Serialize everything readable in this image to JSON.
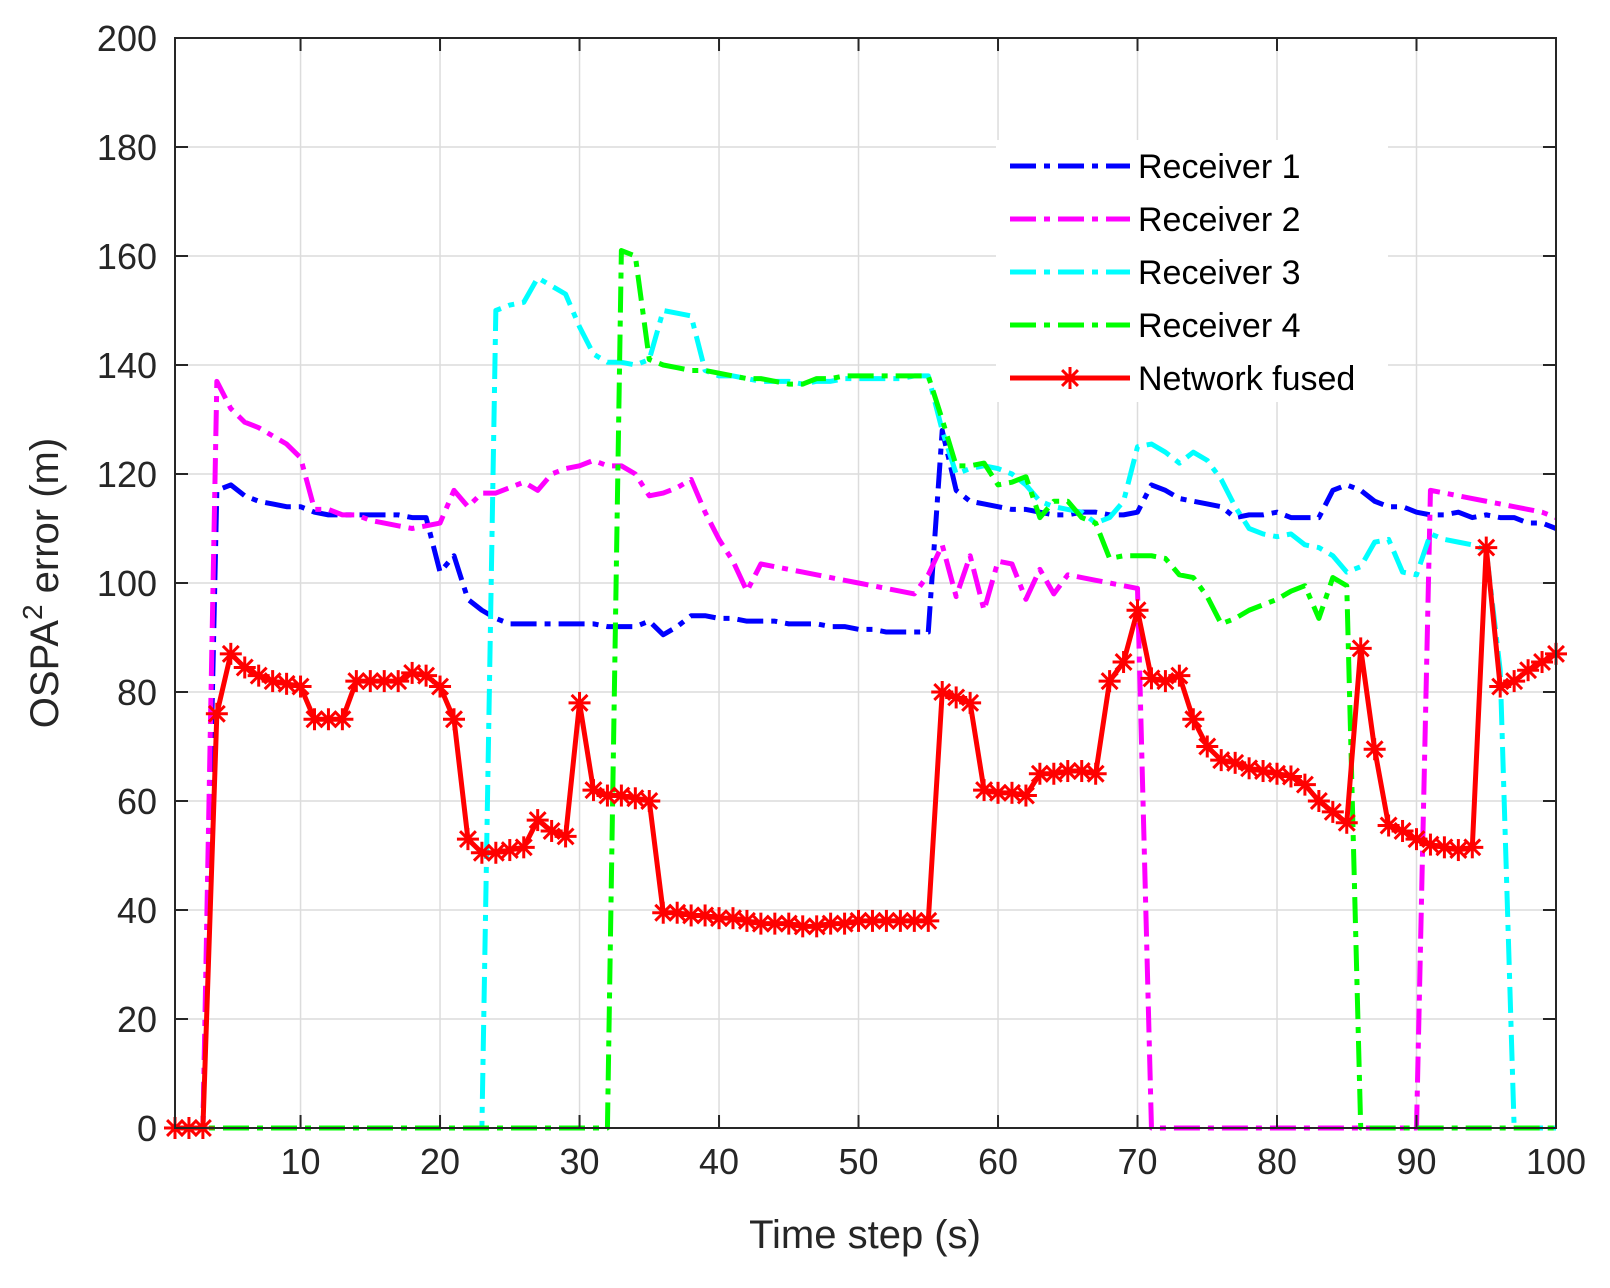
{
  "chart_data": {
    "type": "line",
    "title": "",
    "xlabel": "Time step (s)",
    "ylabel_main": "OSPA",
    "ylabel_superscript": "2",
    "ylabel_rest": " error (m)",
    "xlim": [
      1,
      100
    ],
    "ylim": [
      0,
      200
    ],
    "xticks": [
      10,
      20,
      30,
      40,
      50,
      60,
      70,
      80,
      90,
      100
    ],
    "yticks": [
      0,
      20,
      40,
      60,
      80,
      100,
      120,
      140,
      160,
      180,
      200
    ],
    "grid": true,
    "legend_position": "top-right",
    "series": [
      {
        "name": "Receiver 1",
        "color": "#0000ff",
        "style": "dashdot",
        "marker": "none",
        "x": [
          1,
          2,
          3,
          4,
          5,
          6,
          7,
          8,
          9,
          10,
          11,
          12,
          13,
          14,
          15,
          16,
          17,
          18,
          19,
          20,
          21,
          22,
          23,
          24,
          25,
          26,
          27,
          28,
          29,
          30,
          31,
          32,
          33,
          34,
          35,
          36,
          37,
          38,
          39,
          40,
          41,
          42,
          43,
          44,
          45,
          46,
          47,
          48,
          49,
          50,
          51,
          52,
          53,
          54,
          55,
          56,
          57,
          58,
          59,
          60,
          61,
          62,
          63,
          64,
          65,
          66,
          67,
          68,
          69,
          70,
          71,
          72,
          73,
          74,
          75,
          76,
          77,
          78,
          79,
          80,
          81,
          82,
          83,
          84,
          85,
          86,
          87,
          88,
          89,
          90,
          91,
          92,
          93,
          94,
          95,
          96,
          97,
          98,
          99,
          100
        ],
        "y": [
          0,
          0,
          0,
          117,
          118,
          116,
          115,
          114.5,
          114,
          114,
          113,
          112.5,
          112.5,
          112.5,
          112.5,
          112.5,
          112.5,
          112,
          112,
          102,
          105,
          97,
          95,
          93.5,
          92.5,
          92.5,
          92.5,
          92.5,
          92.5,
          92.5,
          92.5,
          92,
          92,
          92,
          93,
          90.5,
          92,
          94,
          94,
          93.5,
          93.5,
          93,
          93,
          93,
          92.5,
          92.5,
          92.5,
          92,
          92,
          91.5,
          91.5,
          91,
          91,
          91,
          91,
          128,
          117,
          115,
          114.5,
          114,
          113.5,
          113.5,
          113,
          112.5,
          112.5,
          113,
          113,
          112.5,
          112.5,
          113,
          118,
          117,
          115.5,
          115,
          114.5,
          114,
          112,
          112.5,
          112.5,
          113,
          112,
          112,
          112,
          117,
          118,
          117,
          115,
          114,
          114,
          113,
          112.5,
          112.5,
          113,
          112,
          112.5,
          112,
          112,
          111,
          111,
          110
        ]
      },
      {
        "name": "Receiver 2",
        "color": "#ff00ff",
        "style": "dashdot",
        "marker": "none",
        "x": [
          1,
          2,
          3,
          4,
          5,
          6,
          7,
          8,
          9,
          10,
          11,
          12,
          13,
          14,
          15,
          16,
          17,
          18,
          19,
          20,
          21,
          22,
          23,
          24,
          25,
          26,
          27,
          28,
          29,
          30,
          31,
          32,
          33,
          34,
          35,
          36,
          37,
          38,
          39,
          40,
          41,
          42,
          43,
          44,
          45,
          46,
          47,
          48,
          49,
          50,
          51,
          52,
          53,
          54,
          55,
          56,
          57,
          58,
          59,
          60,
          61,
          62,
          63,
          64,
          65,
          66,
          67,
          68,
          69,
          70,
          71,
          72,
          73,
          74,
          75,
          76,
          77,
          78,
          79,
          80,
          81,
          82,
          83,
          84,
          85,
          86,
          87,
          88,
          89,
          90,
          91,
          92,
          93,
          94,
          95,
          96,
          97,
          98,
          99,
          100
        ],
        "y": [
          0,
          0,
          0,
          137,
          132,
          129.5,
          128.5,
          127,
          125.5,
          123,
          113.5,
          113.5,
          112.5,
          112.5,
          111.5,
          111,
          110.5,
          110,
          110.5,
          111,
          117,
          114,
          116.5,
          116.5,
          117.5,
          118.5,
          117,
          120,
          121,
          121.5,
          122.5,
          121.5,
          121.5,
          120,
          116,
          116.5,
          117.5,
          119,
          113,
          108,
          104,
          98.5,
          103.5,
          103,
          102.5,
          102,
          101.5,
          101,
          100.5,
          100,
          99.5,
          99,
          98.5,
          98,
          101.5,
          107,
          97.5,
          105,
          95,
          104,
          103.5,
          97,
          102.5,
          98,
          101.5,
          101,
          100.5,
          100,
          99.5,
          99,
          0,
          0,
          0,
          0,
          0,
          0,
          0,
          0,
          0,
          0,
          0,
          0,
          0,
          0,
          0,
          0,
          0,
          0,
          0,
          0,
          117,
          116.5,
          116,
          115.5,
          115,
          114.5,
          114,
          113.5,
          113,
          112
        ]
      },
      {
        "name": "Receiver 3",
        "color": "#00ffff",
        "style": "dashdot",
        "marker": "none",
        "x": [
          1,
          2,
          3,
          4,
          5,
          6,
          7,
          8,
          9,
          10,
          11,
          12,
          13,
          14,
          15,
          16,
          17,
          18,
          19,
          20,
          21,
          22,
          23,
          24,
          25,
          26,
          27,
          28,
          29,
          30,
          31,
          32,
          33,
          34,
          35,
          36,
          37,
          38,
          39,
          40,
          41,
          42,
          43,
          44,
          45,
          46,
          47,
          48,
          49,
          50,
          51,
          52,
          53,
          54,
          55,
          56,
          57,
          58,
          59,
          60,
          61,
          62,
          63,
          64,
          65,
          66,
          67,
          68,
          69,
          70,
          71,
          72,
          73,
          74,
          75,
          76,
          77,
          78,
          79,
          80,
          81,
          82,
          83,
          84,
          85,
          86,
          87,
          88,
          89,
          90,
          91,
          92,
          93,
          94,
          95,
          96,
          97,
          98,
          99,
          100
        ],
        "y": [
          0,
          0,
          0,
          0,
          0,
          0,
          0,
          0,
          0,
          0,
          0,
          0,
          0,
          0,
          0,
          0,
          0,
          0,
          0,
          0,
          0,
          0,
          0,
          150,
          151,
          151.5,
          156,
          154.5,
          153,
          147,
          142,
          140.5,
          140.5,
          140,
          141,
          150,
          149.5,
          149,
          139,
          138,
          138,
          137.5,
          137,
          137,
          137,
          136.5,
          137,
          137,
          137.5,
          137.5,
          137.5,
          137.5,
          137.5,
          138,
          138,
          128,
          120,
          121,
          121.5,
          121,
          120,
          118,
          115,
          114,
          113.5,
          113,
          111,
          112,
          115,
          125,
          125.5,
          124,
          122,
          124,
          122.5,
          119,
          114,
          110,
          109,
          108.5,
          109,
          107,
          106.5,
          105,
          102,
          103,
          107.5,
          108,
          102,
          101.5,
          109,
          108,
          107.5,
          107,
          106,
          84,
          0,
          0,
          0,
          0
        ]
      },
      {
        "name": "Receiver 4",
        "color": "#00ff00",
        "style": "dashdot",
        "marker": "none",
        "x": [
          1,
          2,
          3,
          4,
          5,
          6,
          7,
          8,
          9,
          10,
          11,
          12,
          13,
          14,
          15,
          16,
          17,
          18,
          19,
          20,
          21,
          22,
          23,
          24,
          25,
          26,
          27,
          28,
          29,
          30,
          31,
          32,
          33,
          34,
          35,
          36,
          37,
          38,
          39,
          40,
          41,
          42,
          43,
          44,
          45,
          46,
          47,
          48,
          49,
          50,
          51,
          52,
          53,
          54,
          55,
          56,
          57,
          58,
          59,
          60,
          61,
          62,
          63,
          64,
          65,
          66,
          67,
          68,
          69,
          70,
          71,
          72,
          73,
          74,
          75,
          76,
          77,
          78,
          79,
          80,
          81,
          82,
          83,
          84,
          85,
          86,
          87,
          88,
          89,
          90,
          91,
          92,
          93,
          94,
          95,
          96,
          97,
          98,
          99,
          100
        ],
        "y": [
          0,
          0,
          0,
          0,
          0,
          0,
          0,
          0,
          0,
          0,
          0,
          0,
          0,
          0,
          0,
          0,
          0,
          0,
          0,
          0,
          0,
          0,
          0,
          0,
          0,
          0,
          0,
          0,
          0,
          0,
          0,
          0,
          161,
          160,
          141,
          140,
          139.5,
          139,
          139,
          138.5,
          138,
          137.5,
          137.5,
          137,
          136.5,
          136.5,
          137.5,
          137.5,
          138,
          138,
          138,
          138,
          138,
          138,
          138,
          130,
          121.5,
          121.5,
          122,
          118,
          118.5,
          119.5,
          112,
          115,
          115,
          112,
          111,
          104.5,
          105,
          105,
          105,
          104.5,
          101.5,
          101,
          97.5,
          92.5,
          93.5,
          95,
          96,
          97,
          98.5,
          99.5,
          93.5,
          101,
          99.5,
          0,
          0,
          0,
          0,
          0,
          0,
          0,
          0,
          0,
          0,
          0,
          0,
          0,
          0,
          0
        ]
      },
      {
        "name": "Network fused",
        "color": "#ff0000",
        "style": "solid",
        "marker": "asterisk",
        "x": [
          1,
          2,
          3,
          4,
          5,
          6,
          7,
          8,
          9,
          10,
          11,
          12,
          13,
          14,
          15,
          16,
          17,
          18,
          19,
          20,
          21,
          22,
          23,
          24,
          25,
          26,
          27,
          28,
          29,
          30,
          31,
          32,
          33,
          34,
          35,
          36,
          37,
          38,
          39,
          40,
          41,
          42,
          43,
          44,
          45,
          46,
          47,
          48,
          49,
          50,
          51,
          52,
          53,
          54,
          55,
          56,
          57,
          58,
          59,
          60,
          61,
          62,
          63,
          64,
          65,
          66,
          67,
          68,
          69,
          70,
          71,
          72,
          73,
          74,
          75,
          76,
          77,
          78,
          79,
          80,
          81,
          82,
          83,
          84,
          85,
          86,
          87,
          88,
          89,
          90,
          91,
          92,
          93,
          94,
          95,
          96,
          97,
          98,
          99,
          100
        ],
        "y": [
          0,
          0,
          0,
          76,
          87,
          84.5,
          83,
          82,
          81.5,
          81,
          75,
          75,
          75,
          82,
          82,
          82,
          82,
          83.5,
          83,
          81,
          75,
          53,
          50.5,
          50.5,
          51,
          51.5,
          56.5,
          54.5,
          53.5,
          78,
          62,
          61,
          61,
          60.5,
          60,
          39.5,
          39.5,
          39,
          39,
          38.5,
          38.5,
          38,
          37.5,
          37.5,
          37.5,
          37,
          37,
          37.5,
          37.5,
          38,
          38,
          38,
          38,
          38,
          38,
          80,
          79,
          78,
          62,
          61.5,
          61.5,
          61,
          65,
          65,
          65.5,
          65.5,
          65,
          82,
          85.5,
          95,
          82.5,
          82,
          83,
          75,
          70,
          67.5,
          67,
          66,
          65.5,
          65,
          64.5,
          63,
          60,
          58,
          56,
          88,
          69.5,
          55.5,
          54.5,
          53,
          52,
          51.5,
          51,
          51.5,
          106.5,
          81,
          82,
          84,
          85.5,
          87
        ]
      }
    ]
  }
}
